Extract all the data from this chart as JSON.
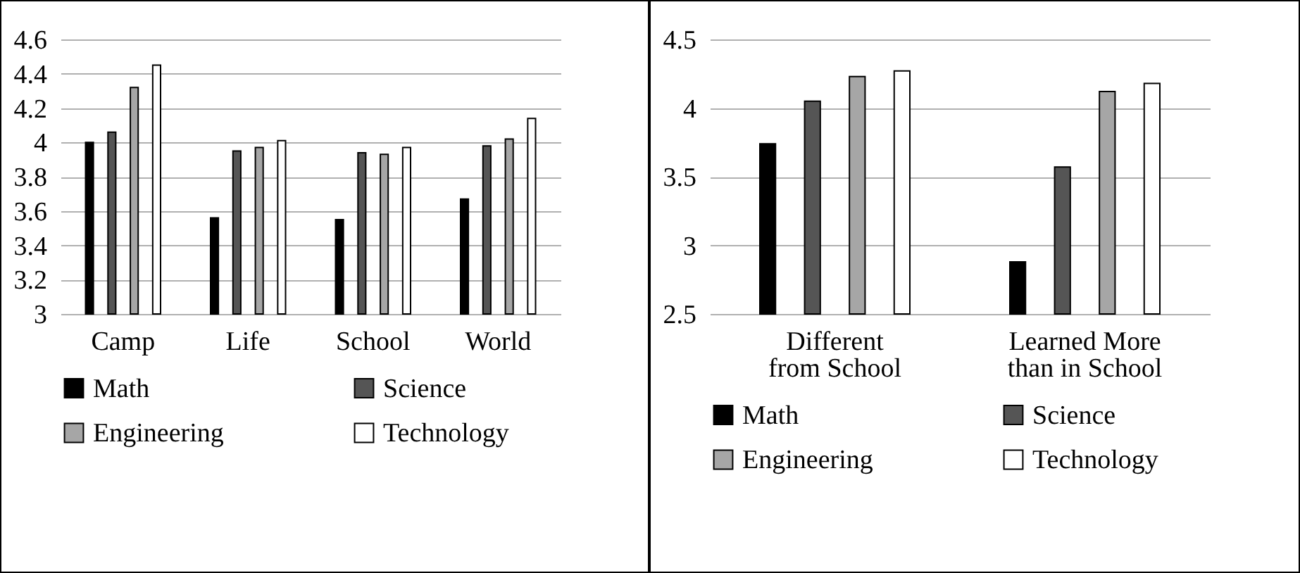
{
  "chart_data": [
    {
      "type": "bar",
      "categories": [
        "Camp",
        "Life",
        "School",
        "World"
      ],
      "series": [
        {
          "name": "Math",
          "color": "#000000",
          "values": [
            4.0,
            3.56,
            3.55,
            3.67
          ]
        },
        {
          "name": "Science",
          "color": "#555555",
          "values": [
            4.06,
            3.95,
            3.94,
            3.98
          ]
        },
        {
          "name": "Engineering",
          "color": "#a6a6a6",
          "values": [
            4.32,
            3.97,
            3.93,
            4.02
          ]
        },
        {
          "name": "Technology",
          "color": "#ffffff",
          "values": [
            4.45,
            4.01,
            3.97,
            4.14
          ]
        }
      ],
      "ylim": [
        3,
        4.6
      ],
      "yticks": [
        3,
        3.2,
        3.4,
        3.6,
        3.8,
        4,
        4.2,
        4.4,
        4.6
      ],
      "grid": "y",
      "legend": "bottom"
    },
    {
      "type": "bar",
      "categories": [
        "Different from School",
        "Learned More than in School"
      ],
      "series": [
        {
          "name": "Math",
          "color": "#000000",
          "values": [
            3.74,
            2.88
          ]
        },
        {
          "name": "Science",
          "color": "#555555",
          "values": [
            4.05,
            3.57
          ]
        },
        {
          "name": "Engineering",
          "color": "#a6a6a6",
          "values": [
            4.23,
            4.12
          ]
        },
        {
          "name": "Technology",
          "color": "#ffffff",
          "values": [
            4.27,
            4.18
          ]
        }
      ],
      "ylim": [
        2.5,
        4.5
      ],
      "yticks": [
        2.5,
        3,
        3.5,
        4,
        4.5
      ],
      "grid": "y",
      "legend": "bottom"
    }
  ]
}
